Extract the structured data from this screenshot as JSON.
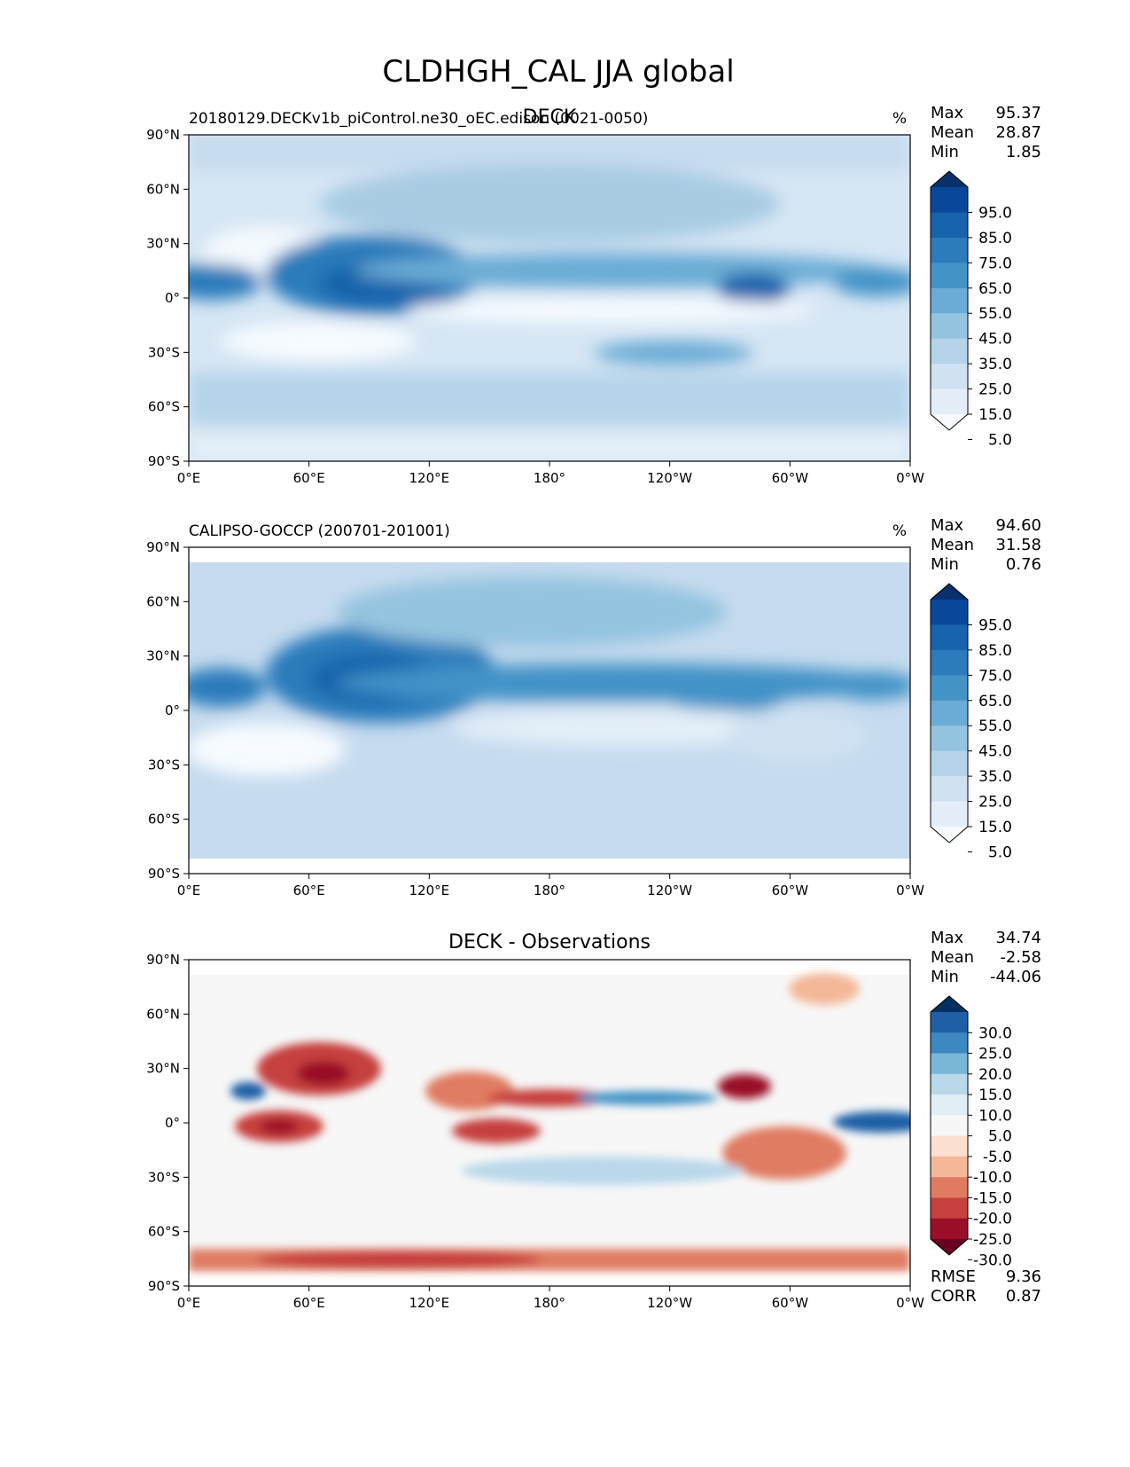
{
  "title": "CLDHGH_CAL JJA global",
  "panels": [
    {
      "label_center": "DECK",
      "label_left": "20180129.DECKv1b_piControl.ne30_oEC.edison (0021-0050)",
      "units": "%",
      "stats": {
        "max_label": "Max",
        "max": "95.37",
        "mean_label": "Mean",
        "mean": "28.87",
        "min_label": "Min",
        "min": "1.85"
      },
      "colorbar_levels": [
        "95.0",
        "85.0",
        "75.0",
        "65.0",
        "55.0",
        "45.0",
        "35.0",
        "25.0",
        "15.0",
        "5.0"
      ],
      "colors": [
        "#08306b",
        "#08479a",
        "#1763ac",
        "#2c7bbb",
        "#4393c7",
        "#6aacd5",
        "#94c4df",
        "#b5d4e9",
        "#d0e1f2",
        "#e3eef8",
        "#f7fbff"
      ]
    },
    {
      "label_center": "",
      "label_left": "CALIPSO-GOCCP (200701-201001)",
      "units": "%",
      "stats": {
        "max_label": "Max",
        "max": "94.60",
        "mean_label": "Mean",
        "mean": "31.58",
        "min_label": "Min",
        "min": "0.76"
      },
      "colorbar_levels": [
        "95.0",
        "85.0",
        "75.0",
        "65.0",
        "55.0",
        "45.0",
        "35.0",
        "25.0",
        "15.0",
        "5.0"
      ],
      "colors": [
        "#08306b",
        "#08479a",
        "#1763ac",
        "#2c7bbb",
        "#4393c7",
        "#6aacd5",
        "#94c4df",
        "#b5d4e9",
        "#d0e1f2",
        "#e3eef8",
        "#f7fbff"
      ]
    },
    {
      "label_center": "DECK - Observations",
      "label_left": "",
      "units": "",
      "stats": {
        "max_label": "Max",
        "max": "34.74",
        "mean_label": "Mean",
        "mean": "-2.58",
        "min_label": "Min",
        "min": "-44.06"
      },
      "colorbar_levels": [
        "30.0",
        "25.0",
        "20.0",
        "15.0",
        "10.0",
        "5.0",
        "-5.0",
        "-10.0",
        "-15.0",
        "-20.0",
        "-25.0",
        "-30.0"
      ],
      "colors": [
        "#053061",
        "#1f5fa6",
        "#3d88c0",
        "#7ab6d6",
        "#b9d8ea",
        "#e2eef5",
        "#f7f7f7",
        "#fbe0d0",
        "#f4b899",
        "#e07b62",
        "#c6413e",
        "#9a0f27",
        "#67001f"
      ],
      "rmse_label": "RMSE",
      "rmse": "9.36",
      "corr_label": "CORR",
      "corr": "0.87"
    }
  ],
  "axes": {
    "x_ticks": [
      "0°E",
      "60°E",
      "120°E",
      "180°",
      "120°W",
      "60°W",
      "0°W"
    ],
    "y_ticks": [
      "90°N",
      "60°N",
      "30°N",
      "0°",
      "30°S",
      "60°S",
      "90°S"
    ]
  },
  "chart_data": [
    {
      "type": "heatmap",
      "title": "DECK",
      "subtitle": "20180129.DECKv1b_piControl.ne30_oEC.edison (0021-0050)",
      "variable": "CLDHGH_CAL",
      "season": "JJA",
      "units": "%",
      "x_range": [
        0,
        360
      ],
      "y_range": [
        -90,
        90
      ],
      "levels": [
        5,
        15,
        25,
        35,
        45,
        55,
        65,
        75,
        85,
        95
      ],
      "max": 95.37,
      "mean": 28.87,
      "min": 1.85
    },
    {
      "type": "heatmap",
      "title": "CALIPSO-GOCCP (200701-201001)",
      "variable": "CLDHGH_CAL",
      "season": "JJA",
      "units": "%",
      "x_range": [
        0,
        360
      ],
      "y_range": [
        -90,
        90
      ],
      "levels": [
        5,
        15,
        25,
        35,
        45,
        55,
        65,
        75,
        85,
        95
      ],
      "max": 94.6,
      "mean": 31.58,
      "min": 0.76
    },
    {
      "type": "heatmap",
      "title": "DECK - Observations",
      "variable": "CLDHGH_CAL",
      "season": "JJA",
      "x_range": [
        0,
        360
      ],
      "y_range": [
        -90,
        90
      ],
      "levels": [
        -30,
        -25,
        -20,
        -15,
        -10,
        -5,
        5,
        10,
        15,
        20,
        25,
        30
      ],
      "max": 34.74,
      "mean": -2.58,
      "min": -44.06,
      "rmse": 9.36,
      "corr": 0.87
    }
  ]
}
